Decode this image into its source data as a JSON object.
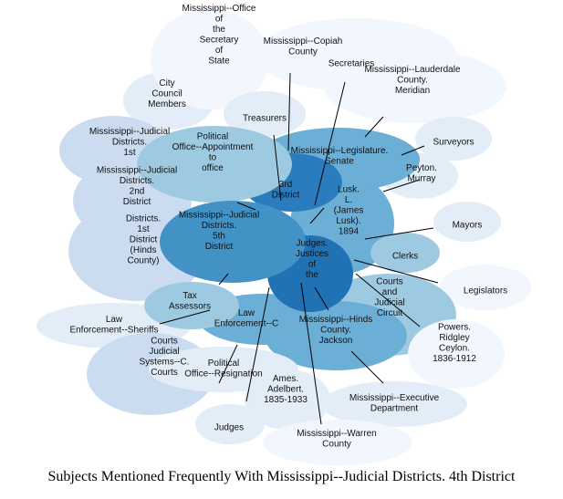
{
  "caption": "Subjects Mentioned Frequently With Mississippi--Judicial Districts. 4th District",
  "colors": {
    "palest": "#f2f7fd",
    "pale": "#e2edf8",
    "light": "#cbdcf0",
    "light_mid": "#c6dbef",
    "mid_light": "#9ecae1",
    "mid": "#6baed6",
    "mid_dark": "#4292c6",
    "dark": "#2b7cbf",
    "darkest": "#2171b5",
    "edge": "#000000"
  },
  "nodes": [
    {
      "id": "copiah",
      "label": [
        "Mississippi--Copiah",
        "County"
      ]
    },
    {
      "id": "sec_state",
      "label": [
        "Mississippi--Office",
        "of",
        "the",
        "Secretary",
        "of",
        "State"
      ]
    },
    {
      "id": "secretaries",
      "label": [
        "Secretaries"
      ]
    },
    {
      "id": "lauderdale",
      "label": [
        "Mississippi--Lauderdale",
        "County.",
        "Meridian"
      ]
    },
    {
      "id": "council",
      "label": [
        "City",
        "Council",
        "Members"
      ]
    },
    {
      "id": "treasurers",
      "label": [
        "Treasurers"
      ]
    },
    {
      "id": "surveyors",
      "label": [
        "Surveyors"
      ]
    },
    {
      "id": "jd_1st",
      "label": [
        "Mississippi--Judicial",
        "Districts.",
        "1st"
      ]
    },
    {
      "id": "political_appt",
      "label": [
        "Political",
        "Office--Appointment",
        "to",
        "office"
      ]
    },
    {
      "id": "legislature_senate",
      "label": [
        "Mississippi--Legislature.",
        "Senate"
      ]
    },
    {
      "id": "peyton",
      "label": [
        "Peyton.",
        "Murray"
      ]
    },
    {
      "id": "jd_2nd",
      "label": [
        "Mississippi--Judicial",
        "Districts.",
        "2nd",
        "District"
      ]
    },
    {
      "id": "jd_3rd",
      "label": [
        "3rd",
        "District"
      ]
    },
    {
      "id": "mayors",
      "label": [
        "Mayors"
      ]
    },
    {
      "id": "jd_5th",
      "label": [
        "Mississippi--Judicial",
        "Districts.",
        "5th",
        "District"
      ]
    },
    {
      "id": "lusk",
      "label": [
        "Lusk.",
        "L.",
        "(James",
        "Lusk).",
        "1894"
      ]
    },
    {
      "id": "jd_1st_hinds",
      "label": [
        "Districts.",
        "1st",
        "District",
        "(Hinds",
        "County)"
      ]
    },
    {
      "id": "clerks",
      "label": [
        "Clerks"
      ]
    },
    {
      "id": "judges_jp",
      "label": [
        "Judges.",
        "Justices",
        "of",
        "the"
      ]
    },
    {
      "id": "legislators",
      "label": [
        "Legislators"
      ]
    },
    {
      "id": "tax_assessors",
      "label": [
        "Tax",
        "Assessors"
      ]
    },
    {
      "id": "courts_judicial",
      "label": [
        "Courts",
        "and",
        "Judicial",
        "Circuit"
      ]
    },
    {
      "id": "sheriffs",
      "label": [
        "Law",
        "Enforcement--Sheriffs"
      ]
    },
    {
      "id": "law_enf",
      "label": [
        "Law",
        "Enforcement--C"
      ]
    },
    {
      "id": "hinds_jackson",
      "label": [
        "Mississippi--Hinds",
        "County.",
        "Jackson"
      ]
    },
    {
      "id": "powers",
      "label": [
        "Powers.",
        "Ridgley",
        "Ceylon.",
        "1836-1912"
      ]
    },
    {
      "id": "courts_systems",
      "label": [
        "Courts",
        "Judicial",
        "Systems--C.",
        "Courts"
      ]
    },
    {
      "id": "political_resign",
      "label": [
        "Political",
        "Office--Resignation"
      ]
    },
    {
      "id": "ames",
      "label": [
        "Ames.",
        "Adelbert.",
        "1835-1933"
      ]
    },
    {
      "id": "executive",
      "label": [
        "Mississippi--Executive",
        "Department"
      ]
    },
    {
      "id": "judges",
      "label": [
        "Judges"
      ]
    },
    {
      "id": "warren",
      "label": [
        "Mississippi--Warren",
        "County"
      ]
    }
  ]
}
